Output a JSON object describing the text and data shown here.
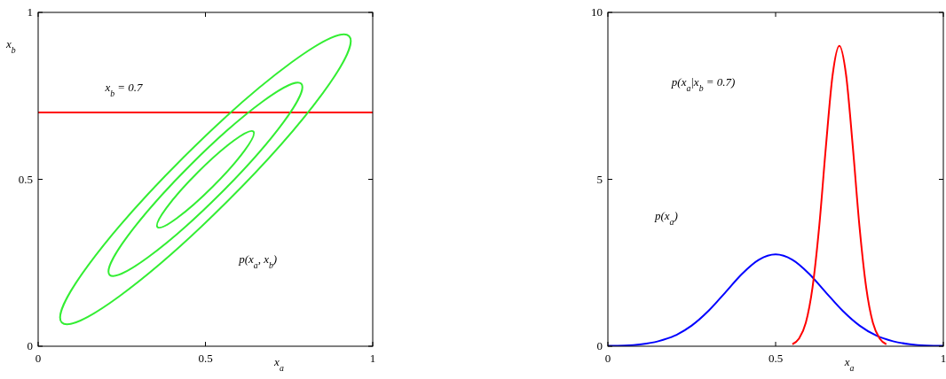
{
  "chart_data": [
    {
      "type": "line",
      "xlabel": "x$_{a}$",
      "ylabel": "x$_{b}$",
      "xlim": [
        0,
        1
      ],
      "ylim": [
        0,
        1
      ],
      "xticks": [
        0,
        0.5,
        1
      ],
      "yticks": [
        0,
        0.5,
        1
      ],
      "ref_lines": [
        {
          "axis": "y",
          "value": 0.7,
          "label": "x$_{b}$ = 0.7",
          "color": "#ff0000"
        }
      ],
      "annotations": [
        "p(x$_{a}$, x$_{b}$)"
      ]
    },
    {
      "type": "line",
      "xlabel": "x$_{a}$",
      "xlim": [
        0,
        1
      ],
      "ylim": [
        0,
        10
      ],
      "xticks": [
        0,
        0.5,
        1
      ],
      "yticks": [
        0,
        5,
        10
      ],
      "series": [
        {
          "color": "#0000ff",
          "x": [
            0,
            0.05,
            0.1,
            0.15,
            0.2,
            0.25,
            0.3,
            0.35,
            0.4,
            0.45,
            0.5,
            0.55,
            0.6,
            0.65,
            0.7,
            0.75,
            0.8,
            0.85,
            0.9,
            0.95,
            1
          ],
          "values": [
            0.01,
            0.02,
            0.06,
            0.15,
            0.32,
            0.62,
            1.06,
            1.61,
            2.17,
            2.59,
            2.75,
            2.59,
            2.17,
            1.61,
            1.06,
            0.62,
            0.32,
            0.15,
            0.06,
            0.02,
            0.01
          ]
        },
        {
          "color": "#ff0000",
          "x": [
            0.55,
            0.57,
            0.59,
            0.61,
            0.63,
            0.65,
            0.67,
            0.69,
            0.71,
            0.73,
            0.75,
            0.77,
            0.79,
            0.81,
            0.83
          ],
          "values": [
            0.06,
            0.23,
            0.7,
            1.76,
            3.59,
            5.99,
            8.13,
            9,
            8.13,
            5.99,
            3.59,
            1.76,
            0.7,
            0.23,
            0.06
          ]
        }
      ],
      "annotations": [
        "p(x$_{a}$|x$_{b}$ = 0.7)",
        "p(x$_{a}$)"
      ]
    }
  ]
}
